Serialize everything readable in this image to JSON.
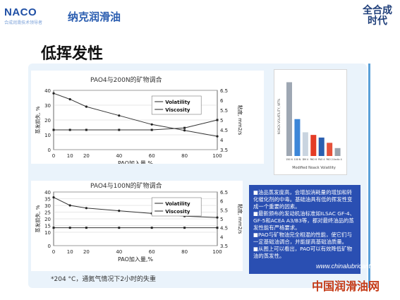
{
  "header": {
    "logo_text": "NACO",
    "logo_subtitle": "合成润滑技术领导者",
    "brand": "纳克润滑油",
    "slogan_line1": "全合成",
    "slogan_line2": "时代"
  },
  "slide_title": "低挥发性",
  "colors": {
    "accent": "#2a4fb2",
    "panel": "#eaf3fb",
    "watermark": "#c43a16"
  },
  "chart_data": [
    {
      "type": "line",
      "title": "PAO4与200N的矿物调合",
      "xlabel": "PAO加入量,%",
      "ylabel_left": "蒸发损失, %",
      "ylabel_right": "粘度, mm2/s",
      "x": [
        0,
        10,
        20,
        40,
        60,
        80,
        100
      ],
      "xlim": [
        0,
        100
      ],
      "ylim_left": [
        0,
        40
      ],
      "ylim_right": [
        3.5,
        6.5
      ],
      "yticks_left": [
        "0",
        "10",
        "20",
        "30",
        "40"
      ],
      "yticks_right": [
        "3.5",
        "4",
        "4.5",
        "5",
        "5.5",
        "6",
        "6.5"
      ],
      "series": [
        {
          "name": "Volatility",
          "values": [
            38,
            34,
            29,
            23,
            17,
            13,
            9
          ]
        },
        {
          "name": "Viscosity",
          "values": [
            4.5,
            4.5,
            4.5,
            4.5,
            4.5,
            4.6,
            5.0
          ]
        }
      ]
    },
    {
      "type": "line",
      "title": "PAO4与100N的矿物调合",
      "xlabel": "PAO加入量,%",
      "ylabel_left": "蒸发损失, %",
      "ylabel_right": "粘度, mm2/s",
      "x": [
        0,
        10,
        20,
        40,
        60,
        80,
        100
      ],
      "xlim": [
        0,
        100
      ],
      "ylim_left": [
        0,
        40
      ],
      "ylim_right": [
        3.5,
        6.5
      ],
      "yticks_left": [
        "0",
        "10",
        "15",
        "20",
        "25",
        "30",
        "35",
        "40"
      ],
      "yticks_right": [
        "3.5",
        "4",
        "4.5",
        "5",
        "5.5",
        "6",
        "6.5"
      ],
      "series": [
        {
          "name": "Volatility",
          "values": [
            36,
            30,
            28,
            26,
            24,
            22,
            21
          ]
        },
        {
          "name": "Viscosity",
          "values": [
            4.5,
            4.5,
            4.5,
            4.5,
            4.5,
            4.5,
            4.5
          ]
        }
      ]
    },
    {
      "type": "bar",
      "title": "",
      "xlabel": "Modified Noack Volatility",
      "ylabel": "NOACK VOLATILITY, WT%",
      "categories": [
        "150 N",
        "100 N",
        "DM 4",
        "PAO 6",
        "PAO 4",
        "PAO 2",
        "Arctic 4"
      ],
      "values": [
        28,
        14,
        9,
        8,
        7,
        5,
        3
      ],
      "colors": [
        "#9ea7b3",
        "#3c86d8",
        "#c9d4e0",
        "#e43c26",
        "#2b5fb0",
        "#e5513a",
        "#9aa3ad"
      ]
    }
  ],
  "right_box": {
    "items": [
      "油品蒸发度高，会增加消耗量的增加和转化催化剂的中毒。基础油具有低的挥发性变成一个重要的因素。",
      "最新颁布的发动机油标准如ILSAC GF-4、GF-5和ACEA  A3/B3等，都对最终油品的蒸发性能有严格要求。",
      "PAO与矿物油完全相混的性能，使它们与一定基础油调合，并能提高基础油质量。",
      "从图上可以看出，PAO可以有效降低矿物油的蒸发性。"
    ]
  },
  "footnote": "*204 °C，通氮气情况下2小时的失重",
  "watermark": {
    "url": "www.chinalubricant.com",
    "text": "中国润滑油网"
  }
}
